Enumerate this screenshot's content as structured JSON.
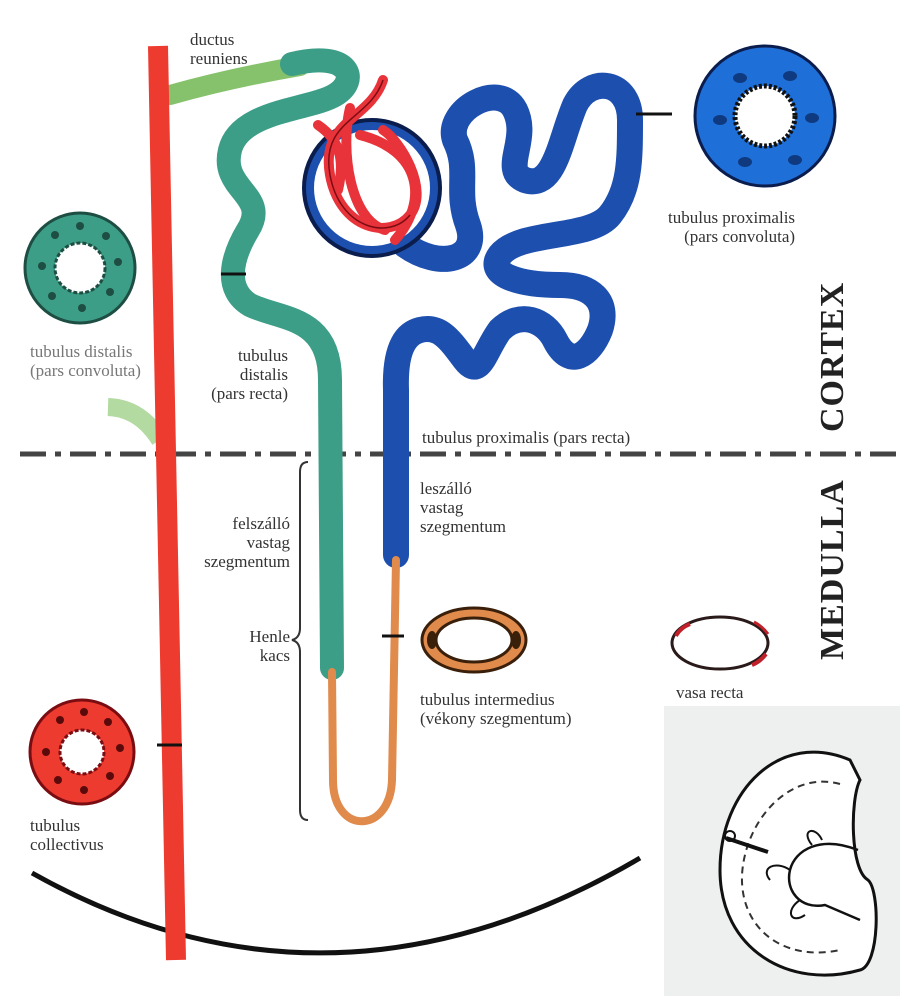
{
  "labels": {
    "ductus_reuniens": [
      "ductus",
      "reuniens"
    ],
    "tubulus_proximalis_convoluta": [
      "tubulus proximalis",
      "(pars convoluta)"
    ],
    "tubulus_distalis_convoluta": [
      "tubulus distalis",
      "(pars convoluta)"
    ],
    "tubulus_distalis_recta": [
      "tubulus",
      "distalis",
      "(pars recta)"
    ],
    "tubulus_proximalis_recta": [
      "tubulus proximalis (pars recta)"
    ],
    "leszallo": [
      "leszálló",
      "vastag",
      "szegmentum"
    ],
    "felszallo": [
      "felszálló",
      "vastag",
      "szegmentum"
    ],
    "henle": [
      "Henle",
      "kacs"
    ],
    "tubulus_intermedius": [
      "tubulus intermedius",
      "(vékony szegmentum)"
    ],
    "vasa_recta": [
      "vasa recta"
    ],
    "tubulus_collectivus": [
      "tubulus",
      "collectivus"
    ]
  },
  "zones": {
    "cortex": "CORTEX",
    "medulla": "MEDULLA"
  },
  "colors": {
    "collecting_duct": "#ee3b2f",
    "distal_tubule": "#3d9e87",
    "proximal_tubule": "#1d4fae",
    "thin_segment": "#e08a4c",
    "ductus_reuniens": "#86c26b",
    "glomerulus": "#e8333a",
    "boundary": "#444444"
  }
}
